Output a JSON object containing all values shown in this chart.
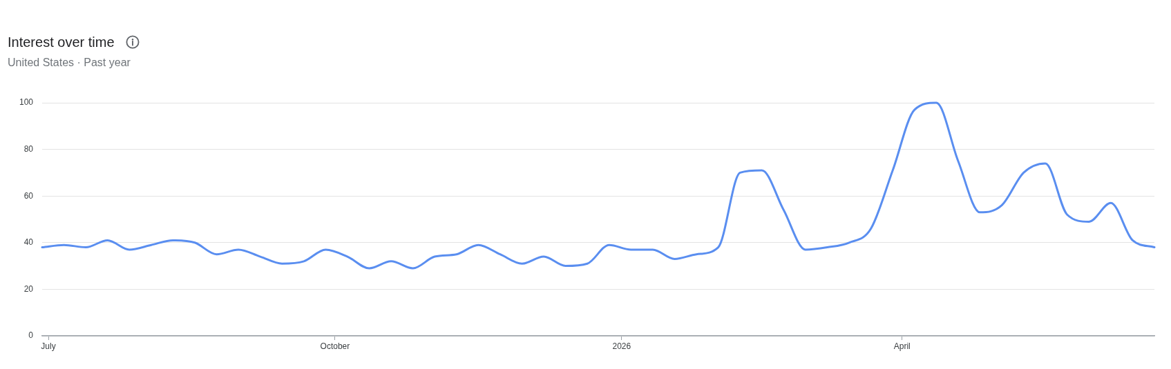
{
  "chart_data": {
    "type": "line",
    "title": "Interest over time",
    "subtitle": "United States · Past year",
    "x": [
      "2025-06-29",
      "2025-07-06",
      "2025-07-13",
      "2025-07-20",
      "2025-07-27",
      "2025-08-03",
      "2025-08-10",
      "2025-08-17",
      "2025-08-24",
      "2025-08-31",
      "2025-09-07",
      "2025-09-14",
      "2025-09-21",
      "2025-09-28",
      "2025-10-05",
      "2025-10-12",
      "2025-10-19",
      "2025-10-26",
      "2025-11-02",
      "2025-11-09",
      "2025-11-16",
      "2025-11-23",
      "2025-11-30",
      "2025-12-07",
      "2025-12-14",
      "2025-12-21",
      "2025-12-28",
      "2026-01-04",
      "2026-01-11",
      "2026-01-18",
      "2026-01-25",
      "2026-02-01",
      "2026-02-08",
      "2026-02-15",
      "2026-02-22",
      "2026-03-01",
      "2026-03-08",
      "2026-03-15",
      "2026-03-22",
      "2026-03-29",
      "2026-04-05",
      "2026-04-12",
      "2026-04-19",
      "2026-04-26",
      "2026-05-03",
      "2026-05-10",
      "2026-05-17",
      "2026-05-24",
      "2026-05-31",
      "2026-06-07",
      "2026-06-14",
      "2026-06-21"
    ],
    "series": [
      {
        "color": "#5a8ef0",
        "values": [
          38,
          39,
          38,
          41,
          37,
          39,
          41,
          40,
          35,
          37,
          34,
          31,
          32,
          37,
          34,
          29,
          32,
          29,
          34,
          35,
          39,
          35,
          31,
          34,
          30,
          31,
          39,
          37,
          37,
          33,
          35,
          38,
          70,
          71,
          54,
          37,
          38,
          40,
          46,
          71,
          97,
          100,
          75,
          53,
          56,
          70,
          74,
          52,
          49,
          57,
          41,
          38
        ]
      }
    ],
    "xlim": [
      "2025-06-29",
      "2026-06-21"
    ],
    "xticks": [
      {
        "value": "2025-07-01",
        "label": "July"
      },
      {
        "value": "2025-10-01",
        "label": "October"
      },
      {
        "value": "2026-01-01",
        "label": "2026"
      },
      {
        "value": "2026-04-01",
        "label": "April"
      }
    ],
    "ylim": [
      0,
      100
    ],
    "yticks": [
      0,
      20,
      40,
      60,
      80,
      100
    ],
    "grid": "y",
    "marker": "none",
    "line_style": "solid"
  }
}
